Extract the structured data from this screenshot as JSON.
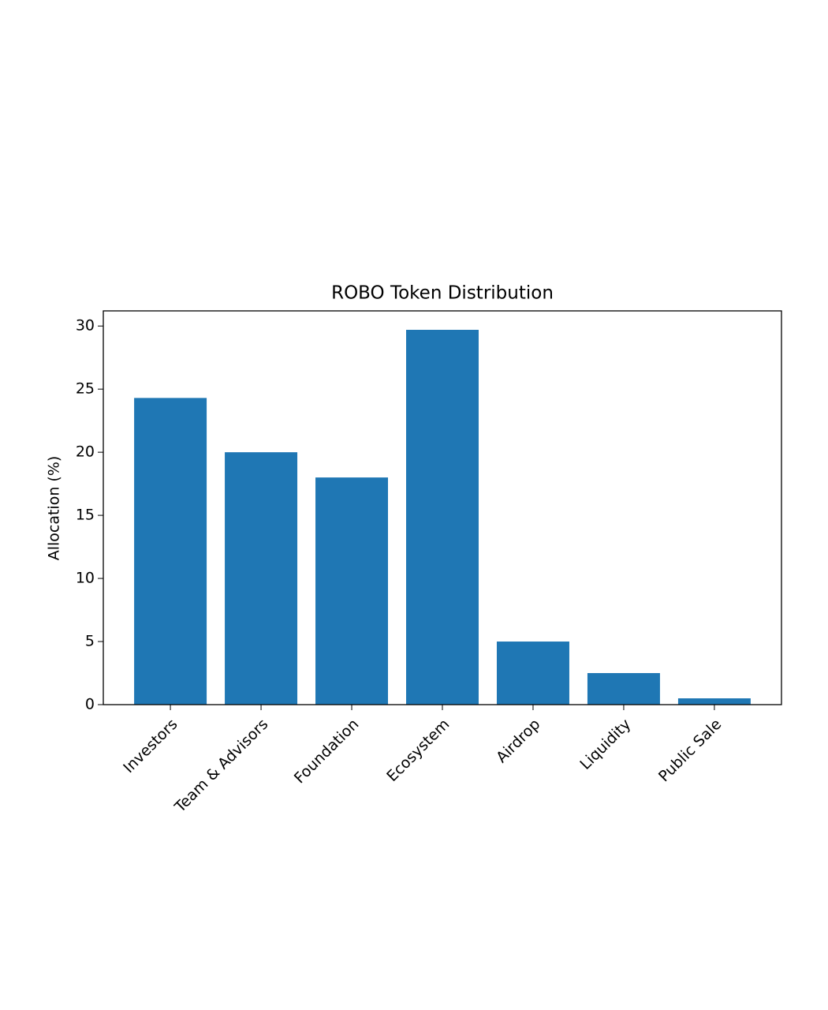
{
  "chart_data": {
    "type": "bar",
    "title": "ROBO Token Distribution",
    "y_label": "Allocation (%)",
    "categories": [
      "Investors",
      "Team & Advisors",
      "Foundation",
      "Ecosystem",
      "Airdrop",
      "Liquidity",
      "Public Sale"
    ],
    "values": [
      24.3,
      20,
      18,
      29.7,
      5,
      2.5,
      0.5
    ],
    "color": "#1f77b4",
    "ylim": [
      0,
      31.2
    ],
    "yticks": [
      0,
      5,
      10,
      15,
      20,
      25,
      30
    ],
    "grid": false
  }
}
